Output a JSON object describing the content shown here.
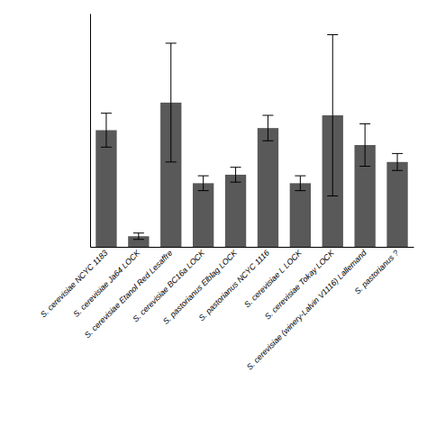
{
  "chart_data": {
    "type": "bar",
    "categories": [
      "S. cerevisiae NCYC 1183",
      "S. cerevisiae Ja64 LOCK",
      "S. cerevisiae Etanol Red Lesaffre",
      "S. cerevisiae BC16a LOCK",
      "S. pastorianus Elblag LOCK",
      "S. pastorianus NCYC 1116",
      "S. cerevisiae L LOCK",
      "S. cerevisiae Tokay LOCK",
      "S. cerevisiae (winery-Lalvin V1116) Lallemand",
      "S. pastorianus ?"
    ],
    "values": [
      5.5,
      0.5,
      6.8,
      3.0,
      3.4,
      5.6,
      3.0,
      6.2,
      4.8,
      4.0
    ],
    "errors": [
      0.8,
      0.15,
      2.8,
      0.35,
      0.35,
      0.6,
      0.35,
      3.8,
      1.0,
      0.4
    ],
    "color": "#595959",
    "ylim": [
      0,
      11
    ],
    "tick_labels": "x"
  }
}
